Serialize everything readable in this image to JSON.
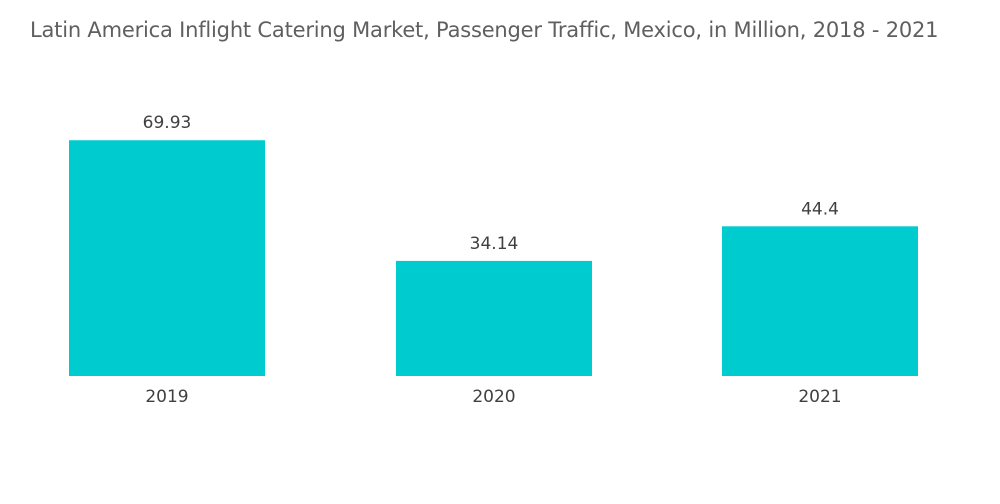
{
  "chart_data": {
    "type": "bar",
    "title": "Latin America Inflight Catering Market, Passenger Traffic, Mexico, in Million, 2018 - 2021",
    "categories": [
      "2019",
      "2020",
      "2021"
    ],
    "values": [
      69.93,
      34.14,
      44.4
    ],
    "value_labels": [
      "69.93",
      "34.14",
      "44.4"
    ],
    "xlabel": "",
    "ylabel": "",
    "ylim": [
      0,
      70
    ],
    "grid": false,
    "legend": "none",
    "bar_color": "#00ccd0"
  }
}
